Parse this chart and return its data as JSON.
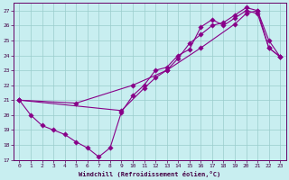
{
  "xlabel": "Windchill (Refroidissement éolien,°C)",
  "bg_color": "#c8eef0",
  "line_color": "#880088",
  "grid_color": "#99cccc",
  "xlim": [
    -0.5,
    23.5
  ],
  "ylim": [
    17,
    27.5
  ],
  "yticks": [
    17,
    18,
    19,
    20,
    21,
    22,
    23,
    24,
    25,
    26,
    27
  ],
  "xticks": [
    0,
    1,
    2,
    3,
    4,
    5,
    6,
    7,
    8,
    9,
    10,
    11,
    12,
    13,
    14,
    15,
    16,
    17,
    18,
    19,
    20,
    21,
    22,
    23
  ],
  "line1_x": [
    0,
    1,
    2,
    3,
    4,
    5,
    6,
    7,
    8,
    9,
    10,
    11,
    12,
    13,
    14,
    15,
    16,
    17,
    18,
    19,
    20,
    21,
    22,
    23
  ],
  "line1_y": [
    21.0,
    20.0,
    19.3,
    19.0,
    18.7,
    18.2,
    17.8,
    17.2,
    17.8,
    20.2,
    21.3,
    22.0,
    23.0,
    23.2,
    24.0,
    24.4,
    25.9,
    26.4,
    26.0,
    26.5,
    27.0,
    26.8,
    24.5,
    23.9
  ],
  "line2_x": [
    0,
    9,
    11,
    12,
    13,
    14,
    15,
    16,
    17,
    18,
    19,
    20,
    21,
    22,
    23
  ],
  "line2_y": [
    21.0,
    20.3,
    21.8,
    22.5,
    23.0,
    23.8,
    24.8,
    25.4,
    26.0,
    26.2,
    26.7,
    27.2,
    27.0,
    25.0,
    23.9
  ],
  "line3_x": [
    0,
    5,
    10,
    13,
    16,
    19,
    20,
    21,
    22,
    23
  ],
  "line3_y": [
    21.0,
    20.8,
    22.0,
    23.0,
    24.5,
    26.1,
    26.8,
    27.0,
    24.5,
    23.9
  ]
}
